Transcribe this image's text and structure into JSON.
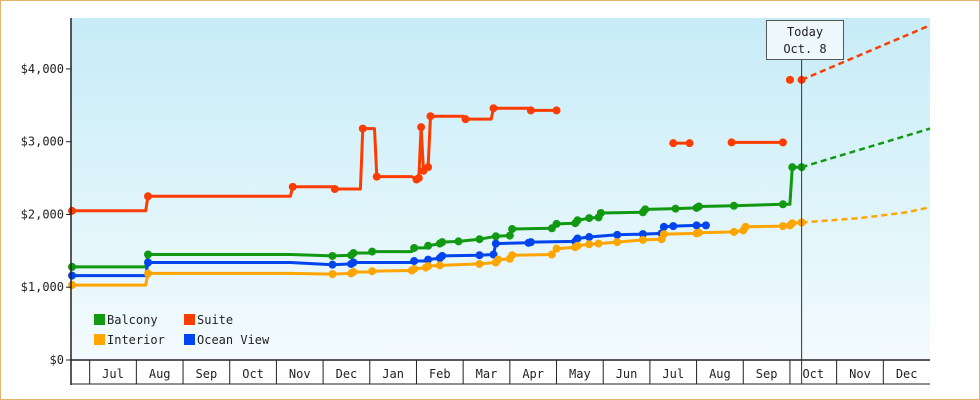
{
  "chart_data": {
    "type": "line",
    "title": "",
    "xlabel": "",
    "ylabel": "",
    "ylim": [
      0,
      4700
    ],
    "y_ticks": [
      {
        "value": 0,
        "label": "$0"
      },
      {
        "value": 1000,
        "label": "$1,000"
      },
      {
        "value": 2000,
        "label": "$2,000"
      },
      {
        "value": 3000,
        "label": "$3,000"
      },
      {
        "value": 4000,
        "label": "$4,000"
      }
    ],
    "x_months": [
      "Jul",
      "Aug",
      "Sep",
      "Oct",
      "Nov",
      "Dec",
      "Jan",
      "Feb",
      "Mar",
      "Apr",
      "May",
      "Jun",
      "Jul",
      "Aug",
      "Sep",
      "Oct",
      "Nov",
      "Dec"
    ],
    "x_range_months": [
      -0.4,
      18.0
    ],
    "today_label": {
      "line1": "Today",
      "line2": "Oct. 8",
      "x": 15.25
    },
    "legend": [
      "Balcony",
      "Suite",
      "Interior",
      "Ocean View"
    ],
    "series": [
      {
        "name": "Suite",
        "color": "#ff3c00",
        "points": [
          [
            -0.4,
            2050
          ],
          [
            1.2,
            2050
          ],
          [
            1.25,
            2250
          ],
          [
            4.3,
            2250
          ],
          [
            4.35,
            2380
          ],
          [
            5.2,
            2380
          ],
          [
            5.25,
            2350
          ],
          [
            5.8,
            2350
          ],
          [
            5.85,
            3180
          ],
          [
            6.1,
            3180
          ],
          [
            6.15,
            2520
          ],
          [
            6.5,
            2520
          ],
          [
            6.55,
            2520
          ],
          [
            6.9,
            2520
          ],
          [
            7.0,
            2480
          ],
          [
            7.05,
            2500
          ],
          [
            7.1,
            3200
          ],
          [
            7.15,
            2600
          ],
          [
            7.25,
            2650
          ],
          [
            7.3,
            3350
          ],
          [
            8.0,
            3350
          ],
          [
            8.05,
            3310
          ],
          [
            8.6,
            3310
          ],
          [
            8.65,
            3460
          ],
          [
            9.4,
            3460
          ],
          [
            9.45,
            3430
          ],
          [
            10.0,
            3430
          ]
        ],
        "future": [
          [
            15.25,
            3850
          ],
          [
            18.0,
            4600
          ]
        ],
        "dots": [
          [
            15.0,
            3850
          ],
          [
            15.25,
            3850
          ]
        ],
        "segments_extra": [
          [
            [
              12.5,
              2980
            ],
            [
              12.85,
              2980
            ]
          ],
          [
            [
              13.75,
              2990
            ],
            [
              14.85,
              2990
            ]
          ]
        ]
      },
      {
        "name": "Balcony",
        "color": "#119911",
        "points": [
          [
            -0.4,
            1280
          ],
          [
            1.2,
            1280
          ],
          [
            1.25,
            1450
          ],
          [
            4.3,
            1450
          ],
          [
            5.2,
            1430
          ],
          [
            5.6,
            1440
          ],
          [
            5.65,
            1470
          ],
          [
            6.0,
            1470
          ],
          [
            6.05,
            1490
          ],
          [
            6.9,
            1490
          ],
          [
            6.95,
            1540
          ],
          [
            7.2,
            1540
          ],
          [
            7.25,
            1570
          ],
          [
            7.5,
            1600
          ],
          [
            7.55,
            1620
          ],
          [
            7.9,
            1630
          ],
          [
            8.35,
            1660
          ],
          [
            8.7,
            1700
          ],
          [
            9.0,
            1710
          ],
          [
            9.05,
            1800
          ],
          [
            9.9,
            1810
          ],
          [
            10.0,
            1870
          ],
          [
            10.4,
            1880
          ],
          [
            10.45,
            1920
          ],
          [
            10.7,
            1950
          ],
          [
            10.9,
            1960
          ],
          [
            10.95,
            2020
          ],
          [
            11.85,
            2030
          ],
          [
            11.9,
            2070
          ],
          [
            12.55,
            2080
          ],
          [
            13.0,
            2090
          ],
          [
            13.05,
            2110
          ],
          [
            13.8,
            2120
          ],
          [
            14.85,
            2140
          ],
          [
            15.0,
            2140
          ],
          [
            15.05,
            2650
          ],
          [
            15.25,
            2650
          ]
        ],
        "future": [
          [
            15.25,
            2650
          ],
          [
            18.0,
            3180
          ]
        ]
      },
      {
        "name": "Ocean View",
        "color": "#0044ee",
        "points": [
          [
            -0.4,
            1160
          ],
          [
            1.2,
            1160
          ],
          [
            1.25,
            1340
          ],
          [
            4.3,
            1340
          ],
          [
            5.2,
            1310
          ],
          [
            5.6,
            1320
          ],
          [
            5.65,
            1340
          ],
          [
            6.9,
            1340
          ],
          [
            6.95,
            1360
          ],
          [
            7.2,
            1360
          ],
          [
            7.25,
            1380
          ],
          [
            7.5,
            1400
          ],
          [
            7.55,
            1430
          ],
          [
            8.35,
            1440
          ],
          [
            8.65,
            1450
          ],
          [
            8.7,
            1600
          ],
          [
            9.4,
            1610
          ],
          [
            9.45,
            1620
          ],
          [
            10.4,
            1630
          ],
          [
            10.45,
            1670
          ],
          [
            10.7,
            1690
          ],
          [
            11.3,
            1720
          ],
          [
            11.85,
            1730
          ],
          [
            12.25,
            1740
          ],
          [
            12.3,
            1830
          ],
          [
            12.5,
            1840
          ],
          [
            13.0,
            1850
          ],
          [
            13.2,
            1850
          ]
        ],
        "future": []
      },
      {
        "name": "Interior",
        "color": "#ffa500",
        "points": [
          [
            -0.4,
            1030
          ],
          [
            1.2,
            1030
          ],
          [
            1.25,
            1190
          ],
          [
            4.3,
            1190
          ],
          [
            5.2,
            1180
          ],
          [
            5.6,
            1190
          ],
          [
            5.65,
            1210
          ],
          [
            6.0,
            1210
          ],
          [
            6.05,
            1220
          ],
          [
            6.9,
            1230
          ],
          [
            6.95,
            1250
          ],
          [
            7.2,
            1270
          ],
          [
            7.25,
            1290
          ],
          [
            7.5,
            1300
          ],
          [
            8.35,
            1320
          ],
          [
            8.7,
            1340
          ],
          [
            8.75,
            1380
          ],
          [
            9.0,
            1390
          ],
          [
            9.05,
            1440
          ],
          [
            9.9,
            1450
          ],
          [
            10.0,
            1530
          ],
          [
            10.4,
            1550
          ],
          [
            10.45,
            1570
          ],
          [
            10.7,
            1590
          ],
          [
            10.9,
            1600
          ],
          [
            11.3,
            1620
          ],
          [
            11.85,
            1650
          ],
          [
            12.25,
            1660
          ],
          [
            12.3,
            1730
          ],
          [
            13.0,
            1740
          ],
          [
            13.05,
            1750
          ],
          [
            13.8,
            1760
          ],
          [
            14.0,
            1780
          ],
          [
            14.05,
            1830
          ],
          [
            14.85,
            1840
          ],
          [
            15.0,
            1850
          ],
          [
            15.05,
            1880
          ],
          [
            15.25,
            1890
          ]
        ],
        "future": [
          [
            15.25,
            1890
          ],
          [
            16.5,
            1950
          ],
          [
            17.5,
            2030
          ],
          [
            18.0,
            2100
          ]
        ]
      }
    ]
  }
}
